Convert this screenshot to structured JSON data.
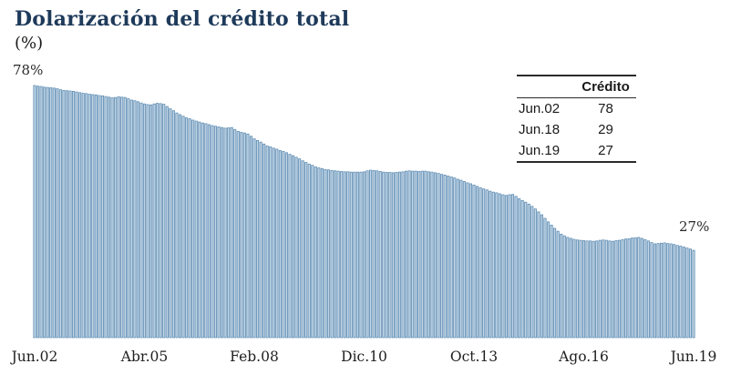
{
  "page": {
    "background": "#ffffff"
  },
  "header": {
    "title": "Dolarización del crédito total",
    "subtitle": "(%)"
  },
  "annotations": {
    "start_label": "78%",
    "end_label": "27%"
  },
  "summary_table": {
    "value_header": "Crédito",
    "rows": [
      {
        "label": "Jun.02",
        "value": "78"
      },
      {
        "label": "Jun.18",
        "value": "29"
      },
      {
        "label": "Jun.19",
        "value": "27"
      }
    ]
  },
  "chart_data": {
    "type": "bar",
    "title": "Dolarización del crédito total",
    "ylabel": "%",
    "xlabel": "",
    "x_start": "Jun.02",
    "x_end": "Jun.19",
    "frequency": "monthly",
    "ylim": [
      0,
      78
    ],
    "grid": false,
    "legend": "none",
    "bar_color": "#c3d6e6",
    "bar_border_color": "#5d8cb3",
    "key_points": [
      {
        "label": "Jun.02",
        "value": 78
      },
      {
        "label": "Jun.18",
        "value": 29
      },
      {
        "label": "Jun.19",
        "value": 27
      }
    ],
    "x_ticks": [
      {
        "label": "Jun.02",
        "index": 0
      },
      {
        "label": "Abr.05",
        "index": 34
      },
      {
        "label": "Feb.08",
        "index": 68
      },
      {
        "label": "Dic.10",
        "index": 102
      },
      {
        "label": "Oct.13",
        "index": 136
      },
      {
        "label": "Ago.16",
        "index": 170
      },
      {
        "label": "Jun.19",
        "index": 204
      }
    ],
    "values": [
      78.0,
      77.8,
      77.7,
      77.5,
      77.4,
      77.3,
      77.2,
      77.0,
      76.7,
      76.5,
      76.4,
      76.3,
      76.2,
      76.0,
      75.8,
      75.6,
      75.5,
      75.3,
      75.2,
      75.1,
      74.9,
      74.8,
      74.6,
      74.4,
      74.2,
      74.3,
      74.5,
      74.4,
      74.3,
      73.9,
      73.5,
      73.3,
      73.0,
      72.6,
      72.3,
      72.1,
      72.0,
      72.3,
      72.5,
      72.4,
      72.2,
      71.5,
      70.8,
      70.2,
      69.5,
      69.0,
      68.5,
      68.0,
      67.7,
      67.3,
      67.0,
      66.7,
      66.4,
      66.2,
      65.9,
      65.6,
      65.4,
      65.2,
      65.0,
      64.8,
      64.9,
      65.0,
      64.4,
      63.8,
      63.5,
      63.3,
      63.0,
      62.3,
      61.5,
      61.0,
      60.5,
      59.9,
      59.3,
      59.0,
      58.6,
      58.3,
      57.9,
      57.6,
      57.2,
      56.7,
      56.3,
      55.8,
      55.3,
      54.7,
      54.2,
      53.7,
      53.3,
      52.8,
      52.5,
      52.3,
      52.0,
      51.9,
      51.7,
      51.6,
      51.5,
      51.4,
      51.3,
      51.3,
      51.2,
      51.2,
      51.2,
      51.2,
      51.3,
      51.6,
      51.8,
      51.7,
      51.6,
      51.4,
      51.2,
      51.1,
      51.1,
      51.0,
      51.1,
      51.2,
      51.3,
      51.5,
      51.6,
      51.5,
      51.5,
      51.4,
      51.5,
      51.5,
      51.3,
      51.2,
      51.0,
      50.8,
      50.5,
      50.3,
      50.0,
      49.7,
      49.4,
      49.0,
      48.7,
      48.3,
      47.9,
      47.6,
      47.2,
      46.8,
      46.4,
      46.0,
      45.7,
      45.3,
      45.0,
      44.8,
      44.5,
      44.2,
      44.0,
      44.2,
      44.3,
      43.7,
      43.0,
      42.4,
      41.9,
      41.3,
      40.6,
      39.8,
      38.9,
      38.0,
      36.9,
      35.8,
      34.8,
      33.8,
      32.9,
      32.0,
      31.5,
      31.0,
      30.7,
      30.4,
      30.2,
      30.1,
      30.0,
      29.9,
      29.9,
      29.8,
      29.9,
      30.1,
      30.2,
      30.1,
      29.9,
      29.8,
      30.0,
      30.1,
      30.3,
      30.5,
      30.6,
      30.8,
      30.9,
      31.0,
      30.7,
      30.3,
      29.9,
      29.4,
      29.0,
      29.1,
      29.2,
      29.3,
      29.1,
      29.0,
      28.8,
      28.5,
      28.3,
      28.0,
      27.7,
      27.4,
      27.0
    ]
  }
}
